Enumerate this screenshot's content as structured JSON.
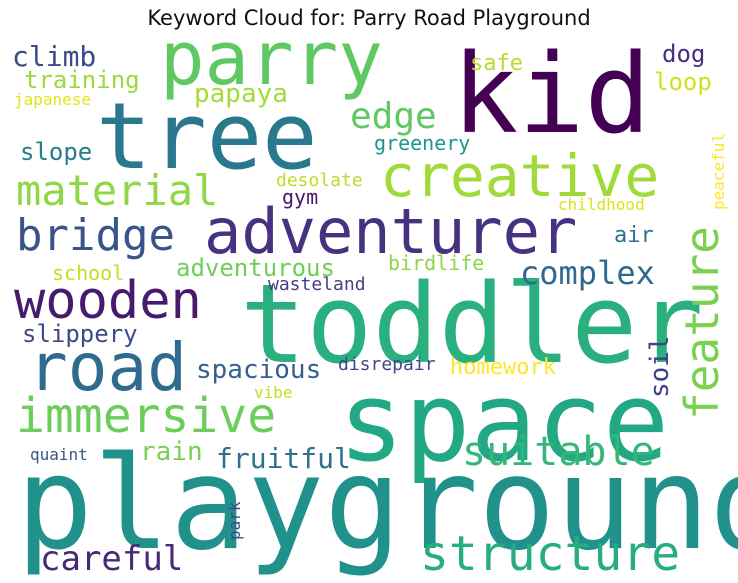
{
  "title": "Keyword Cloud for: Parry Road Playground",
  "chart_data": {
    "type": "wordcloud",
    "title": "Keyword Cloud for: Parry Road Playground",
    "words": [
      {
        "text": "playground",
        "color": "#21918c"
      },
      {
        "text": "toddler",
        "color": "#2ab07f"
      },
      {
        "text": "space",
        "color": "#22a884"
      },
      {
        "text": "kid",
        "color": "#440154"
      },
      {
        "text": "tree",
        "color": "#2a788e"
      },
      {
        "text": "parry",
        "color": "#5ec962"
      },
      {
        "text": "adventurer",
        "color": "#46327e"
      },
      {
        "text": "creative",
        "color": "#a0da39"
      },
      {
        "text": "wooden",
        "color": "#481a6c"
      },
      {
        "text": "road",
        "color": "#2f6b8e"
      },
      {
        "text": "immersive",
        "color": "#6ccd5a"
      },
      {
        "text": "structure",
        "color": "#27ad81"
      },
      {
        "text": "bridge",
        "color": "#3b528b"
      },
      {
        "text": "material",
        "color": "#8fd744"
      },
      {
        "text": "feature",
        "color": "#7ad151"
      },
      {
        "text": "suitable",
        "color": "#35b779"
      },
      {
        "text": "complex",
        "color": "#31688e"
      },
      {
        "text": "careful",
        "color": "#482979"
      },
      {
        "text": "edge",
        "color": "#5ec962"
      },
      {
        "text": "spacious",
        "color": "#355f8d"
      },
      {
        "text": "fruitful",
        "color": "#2d718e"
      },
      {
        "text": "climb",
        "color": "#3e4989"
      },
      {
        "text": "slippery",
        "color": "#3e4a89"
      },
      {
        "text": "adventurous",
        "color": "#6ece58"
      },
      {
        "text": "papaya",
        "color": "#a5db36"
      },
      {
        "text": "slope",
        "color": "#287c8e"
      },
      {
        "text": "training",
        "color": "#9bd93c"
      },
      {
        "text": "homework",
        "color": "#fde725"
      },
      {
        "text": "soil",
        "color": "#424086"
      },
      {
        "text": "rain",
        "color": "#7ad151"
      },
      {
        "text": "dog",
        "color": "#46307e"
      },
      {
        "text": "loop",
        "color": "#d0e11c"
      },
      {
        "text": "safe",
        "color": "#b5de2b"
      },
      {
        "text": "greenery",
        "color": "#1f968b"
      },
      {
        "text": "gym",
        "color": "#481668"
      },
      {
        "text": "air",
        "color": "#2c728e"
      },
      {
        "text": "birdlife",
        "color": "#8ed645"
      },
      {
        "text": "school",
        "color": "#c0df25"
      },
      {
        "text": "desolate",
        "color": "#b8de29"
      },
      {
        "text": "wasteland",
        "color": "#433e85"
      },
      {
        "text": "disrepair",
        "color": "#3f4788"
      },
      {
        "text": "vibe",
        "color": "#c8e020"
      },
      {
        "text": "childhood",
        "color": "#dde318"
      },
      {
        "text": "peaceful",
        "color": "#fde725"
      },
      {
        "text": "japanese",
        "color": "#e5e419"
      },
      {
        "text": "quaint",
        "color": "#3b528b"
      },
      {
        "text": "park",
        "color": "#3e4a89"
      }
    ]
  }
}
